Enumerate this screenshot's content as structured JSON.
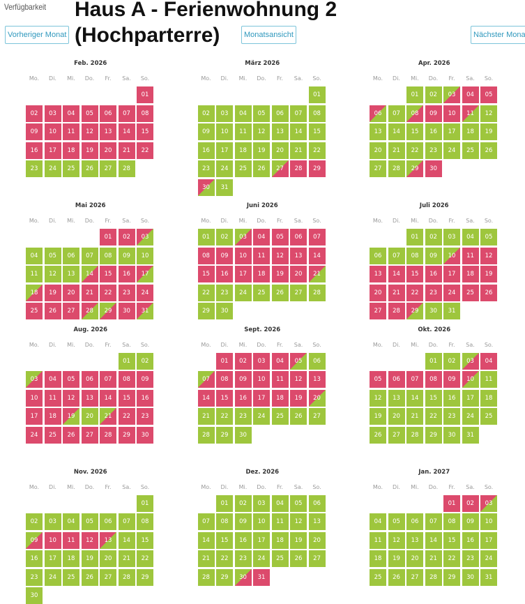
{
  "header": {
    "label": "Verfügbarkeit",
    "title": "Haus A - Ferienwohnung 2 (Hochparterre)",
    "prev_button": "Vorheriger Monat",
    "month_view_button": "Monatsansicht",
    "next_button": "Nächster Monat"
  },
  "weekdays": [
    "Mo.",
    "Di.",
    "Mi.",
    "Do.",
    "Fr.",
    "Sa.",
    "So."
  ],
  "months": [
    {
      "title": "Feb. 2026",
      "days": [
        null,
        null,
        null,
        null,
        null,
        null,
        "01",
        "02",
        "03",
        "04",
        "05",
        "06",
        "07",
        "08",
        "09",
        "10",
        "11",
        "12",
        "13",
        "14",
        "15",
        "16",
        "17",
        "18",
        "19",
        "20",
        "21",
        "22",
        "23",
        "24",
        "25",
        "26",
        "27",
        "28"
      ],
      "states": [
        null,
        null,
        null,
        null,
        null,
        null,
        "b",
        "b",
        "b",
        "b",
        "b",
        "b",
        "b",
        "b",
        "b",
        "b",
        "b",
        "b",
        "b",
        "b",
        "b",
        "b",
        "b",
        "b",
        "b",
        "b",
        "b",
        "b",
        "f",
        "f",
        "f",
        "f",
        "f",
        "f"
      ]
    },
    {
      "title": "März 2026",
      "days": [
        null,
        null,
        null,
        null,
        null,
        null,
        "01",
        "02",
        "03",
        "04",
        "05",
        "06",
        "07",
        "08",
        "09",
        "10",
        "11",
        "12",
        "13",
        "14",
        "15",
        "16",
        "17",
        "18",
        "19",
        "20",
        "21",
        "22",
        "23",
        "24",
        "25",
        "26",
        "27",
        "28",
        "29",
        "30",
        "31"
      ],
      "states": [
        null,
        null,
        null,
        null,
        null,
        null,
        "f",
        "f",
        "f",
        "f",
        "f",
        "f",
        "f",
        "f",
        "f",
        "f",
        "f",
        "f",
        "f",
        "f",
        "f",
        "f",
        "f",
        "f",
        "f",
        "f",
        "f",
        "f",
        "f",
        "f",
        "f",
        "f",
        "a",
        "b",
        "b",
        "d",
        "f"
      ]
    },
    {
      "title": "Apr. 2026",
      "days": [
        null,
        null,
        "01",
        "02",
        "03",
        "04",
        "05",
        "06",
        "07",
        "08",
        "09",
        "10",
        "11",
        "12",
        "13",
        "14",
        "15",
        "16",
        "17",
        "18",
        "19",
        "20",
        "21",
        "22",
        "23",
        "24",
        "25",
        "26",
        "27",
        "28",
        "29",
        "30"
      ],
      "states": [
        null,
        null,
        "f",
        "f",
        "a",
        "b",
        "b",
        "d",
        "f",
        "a",
        "b",
        "b",
        "d",
        "f",
        "f",
        "f",
        "f",
        "f",
        "f",
        "f",
        "f",
        "f",
        "f",
        "f",
        "f",
        "f",
        "f",
        "f",
        "f",
        "f",
        "a",
        "b"
      ]
    },
    {
      "title": "Mai 2026",
      "days": [
        null,
        null,
        null,
        null,
        "01",
        "02",
        "03",
        "04",
        "05",
        "06",
        "07",
        "08",
        "09",
        "10",
        "11",
        "12",
        "13",
        "14",
        "15",
        "16",
        "17",
        "18",
        "19",
        "20",
        "21",
        "22",
        "23",
        "24",
        "25",
        "26",
        "27",
        "28",
        "29",
        "30",
        "31"
      ],
      "states": [
        null,
        null,
        null,
        null,
        "b",
        "b",
        "d",
        "f",
        "f",
        "f",
        "f",
        "f",
        "f",
        "f",
        "f",
        "f",
        "f",
        "a",
        "b",
        "b",
        "d",
        "a",
        "b",
        "b",
        "b",
        "b",
        "b",
        "b",
        "b",
        "b",
        "b",
        "d",
        "a",
        "b",
        "d"
      ]
    },
    {
      "title": "Juni 2026",
      "days": [
        "01",
        "02",
        "03",
        "04",
        "05",
        "06",
        "07",
        "08",
        "09",
        "10",
        "11",
        "12",
        "13",
        "14",
        "15",
        "16",
        "17",
        "18",
        "19",
        "20",
        "21",
        "22",
        "23",
        "24",
        "25",
        "26",
        "27",
        "28",
        "29",
        "30"
      ],
      "states": [
        "f",
        "f",
        "a",
        "b",
        "b",
        "b",
        "b",
        "b",
        "b",
        "b",
        "b",
        "b",
        "b",
        "b",
        "b",
        "b",
        "b",
        "b",
        "b",
        "b",
        "d",
        "f",
        "f",
        "f",
        "f",
        "f",
        "f",
        "f",
        "f",
        "f"
      ]
    },
    {
      "title": "Juli 2026",
      "days": [
        null,
        null,
        "01",
        "02",
        "03",
        "04",
        "05",
        "06",
        "07",
        "08",
        "09",
        "10",
        "11",
        "12",
        "13",
        "14",
        "15",
        "16",
        "17",
        "18",
        "19",
        "20",
        "21",
        "22",
        "23",
        "24",
        "25",
        "26",
        "27",
        "28",
        "29",
        "30",
        "31"
      ],
      "states": [
        null,
        null,
        "f",
        "f",
        "f",
        "f",
        "f",
        "f",
        "f",
        "f",
        "f",
        "a",
        "b",
        "b",
        "b",
        "b",
        "b",
        "b",
        "b",
        "b",
        "b",
        "b",
        "b",
        "b",
        "b",
        "b",
        "b",
        "b",
        "b",
        "b",
        "d",
        "f",
        "f"
      ]
    },
    {
      "title": "Aug. 2026",
      "days": [
        null,
        null,
        null,
        null,
        null,
        "01",
        "02",
        "03",
        "04",
        "05",
        "06",
        "07",
        "08",
        "09",
        "10",
        "11",
        "12",
        "13",
        "14",
        "15",
        "16",
        "17",
        "18",
        "19",
        "20",
        "21",
        "22",
        "23",
        "24",
        "25",
        "26",
        "27",
        "28",
        "29",
        "30",
        "31"
      ],
      "states": [
        null,
        null,
        null,
        null,
        null,
        "f",
        "f",
        "a",
        "b",
        "b",
        "b",
        "b",
        "b",
        "b",
        "b",
        "b",
        "b",
        "b",
        "b",
        "b",
        "b",
        "b",
        "b",
        "d",
        "f",
        "a",
        "b",
        "b",
        "b",
        "b",
        "b",
        "b",
        "b",
        "b",
        "b"
      ]
    },
    {
      "title": "Sept. 2026",
      "days": [
        null,
        "01",
        "02",
        "03",
        "04",
        "05",
        "06",
        "07",
        "08",
        "09",
        "10",
        "11",
        "12",
        "13",
        "14",
        "15",
        "16",
        "17",
        "18",
        "19",
        "20",
        "21",
        "22",
        "23",
        "24",
        "25",
        "26",
        "27",
        "28",
        "29",
        "30"
      ],
      "states": [
        null,
        "b",
        "b",
        "b",
        "b",
        "d",
        "f",
        "a",
        "b",
        "b",
        "b",
        "b",
        "b",
        "b",
        "b",
        "b",
        "b",
        "b",
        "b",
        "b",
        "d",
        "f",
        "f",
        "f",
        "f",
        "f",
        "f",
        "f",
        "f",
        "f",
        "f"
      ]
    },
    {
      "title": "Okt. 2026",
      "days": [
        null,
        null,
        null,
        "01",
        "02",
        "03",
        "04",
        "05",
        "06",
        "07",
        "08",
        "09",
        "10",
        "11",
        "12",
        "13",
        "14",
        "15",
        "16",
        "17",
        "18",
        "19",
        "20",
        "21",
        "22",
        "23",
        "24",
        "25",
        "26",
        "27",
        "28",
        "29",
        "30",
        "31"
      ],
      "states": [
        null,
        null,
        null,
        "f",
        "f",
        "a",
        "b",
        "b",
        "b",
        "b",
        "b",
        "b",
        "d",
        "f",
        "f",
        "f",
        "f",
        "f",
        "f",
        "f",
        "f",
        "f",
        "f",
        "f",
        "f",
        "f",
        "f",
        "f",
        "f",
        "f",
        "f",
        "f",
        "f",
        "f"
      ]
    },
    {
      "title": "Nov. 2026",
      "days": [
        null,
        null,
        null,
        null,
        null,
        null,
        "01",
        "02",
        "03",
        "04",
        "05",
        "06",
        "07",
        "08",
        "09",
        "10",
        "11",
        "12",
        "13",
        "14",
        "15",
        "16",
        "17",
        "18",
        "19",
        "20",
        "21",
        "22",
        "23",
        "24",
        "25",
        "26",
        "27",
        "28",
        "29",
        "30"
      ],
      "states": [
        null,
        null,
        null,
        null,
        null,
        null,
        "f",
        "f",
        "f",
        "f",
        "f",
        "f",
        "f",
        "f",
        "a",
        "b",
        "b",
        "b",
        "d",
        "f",
        "f",
        "f",
        "f",
        "f",
        "f",
        "f",
        "f",
        "f",
        "f",
        "f",
        "f",
        "f",
        "f",
        "f",
        "f",
        "f"
      ]
    },
    {
      "title": "Dez. 2026",
      "days": [
        null,
        "01",
        "02",
        "03",
        "04",
        "05",
        "06",
        "07",
        "08",
        "09",
        "10",
        "11",
        "12",
        "13",
        "14",
        "15",
        "16",
        "17",
        "18",
        "19",
        "20",
        "21",
        "22",
        "23",
        "24",
        "25",
        "26",
        "27",
        "28",
        "29",
        "30",
        "31"
      ],
      "states": [
        null,
        "f",
        "f",
        "f",
        "f",
        "f",
        "f",
        "f",
        "f",
        "f",
        "f",
        "f",
        "f",
        "f",
        "f",
        "f",
        "f",
        "f",
        "f",
        "f",
        "f",
        "f",
        "f",
        "f",
        "f",
        "f",
        "f",
        "f",
        "f",
        "f",
        "a",
        "b"
      ]
    },
    {
      "title": "Jan. 2027",
      "days": [
        null,
        null,
        null,
        null,
        "01",
        "02",
        "03",
        "04",
        "05",
        "06",
        "07",
        "08",
        "09",
        "10",
        "11",
        "12",
        "13",
        "14",
        "15",
        "16",
        "17",
        "18",
        "19",
        "20",
        "21",
        "22",
        "23",
        "24",
        "25",
        "26",
        "27",
        "28",
        "29",
        "30",
        "31"
      ],
      "states": [
        null,
        null,
        null,
        null,
        "b",
        "b",
        "d",
        "f",
        "f",
        "f",
        "f",
        "f",
        "f",
        "f",
        "f",
        "f",
        "f",
        "f",
        "f",
        "f",
        "f",
        "f",
        "f",
        "f",
        "f",
        "f",
        "f",
        "f",
        "f",
        "f",
        "f",
        "f",
        "f",
        "f",
        "f"
      ]
    }
  ]
}
